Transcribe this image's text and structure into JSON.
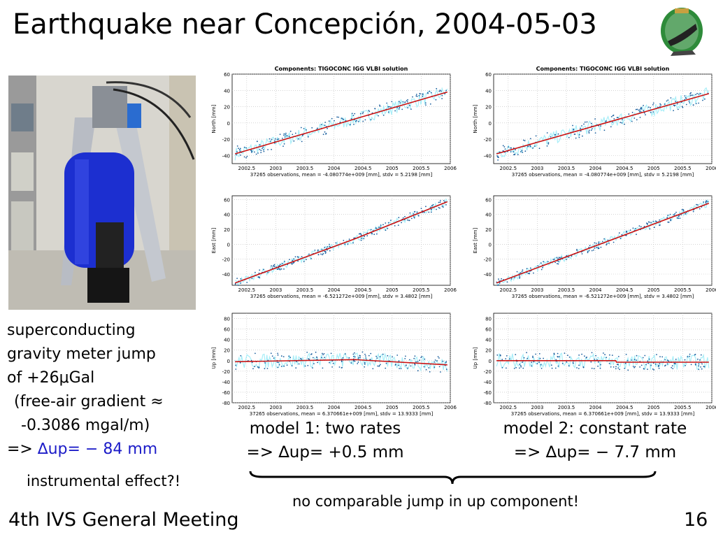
{
  "slide": {
    "title": "Earthquake near Concepción, 2004-05-03",
    "left_text": {
      "line1": "superconducting",
      "line2": "gravity meter jump",
      "line3": "of +26μGal",
      "line4": "(free-air gradient ≈",
      "line5": "-0.3086 mgal/m)",
      "line6_prefix": "=> ",
      "line6_value": "∆up= − 84 mm"
    },
    "instrumental": "instrumental effect?!",
    "model1": {
      "line1": "model 1: two rates",
      "line2": "=> ∆up=  +0.5 mm"
    },
    "model2": {
      "line1": "model 2: constant rate",
      "line2": "=> ∆up= − 7.7 mm"
    },
    "bottom_note": "no comparable jump in up component!",
    "footer": "4th IVS General Meeting",
    "page_number": "16"
  },
  "colors": {
    "fit_line": "#cc1111",
    "data_points": "#1a5f9e",
    "band": "#a8eef8",
    "accent_text": "#1c1cc8"
  },
  "chart_data": [
    {
      "type": "scatter",
      "title": "Components: TIGOCONC        IGG VLBI solution",
      "ylabel": "North [mm]",
      "footer": "37265 observations,  mean = -4.080774e+009 [mm],  stdv = 5.2198 [mm]",
      "xlim": [
        2002.25,
        2006.0
      ],
      "ylim": [
        -50,
        60
      ],
      "yticks": [
        -40,
        -20,
        0,
        20,
        40,
        60
      ],
      "xticks": [
        "2002.5",
        "2003",
        "2003.5",
        "2004",
        "2004.5",
        "2005",
        "2005.5",
        "2006"
      ],
      "fit": [
        [
          2002.3,
          -38
        ],
        [
          2005.95,
          38
        ]
      ],
      "noise": 8
    },
    {
      "type": "scatter",
      "title": "Components: TIGOCONC        IGG VLBI solution",
      "ylabel": "North [mm]",
      "footer": "37265 observations,  mean = -4.080774e+009 [mm],  stdv = 5.2198 [mm]",
      "xlim": [
        2002.25,
        2006.0
      ],
      "ylim": [
        -50,
        60
      ],
      "yticks": [
        -40,
        -20,
        0,
        20,
        40,
        60
      ],
      "xticks": [
        "2002.5",
        "2003",
        "2003.5",
        "2004",
        "2004.5",
        "2005",
        "2005.5",
        "2006"
      ],
      "fit": [
        [
          2002.3,
          -38
        ],
        [
          2005.95,
          36
        ]
      ],
      "noise": 8
    },
    {
      "type": "scatter",
      "title": "",
      "ylabel": "East [mm]",
      "footer": "37265 observations,  mean = -6.521272e+009 [mm],  stdv = 3.4802 [mm]",
      "xlim": [
        2002.25,
        2006.0
      ],
      "ylim": [
        -55,
        65
      ],
      "yticks": [
        -40,
        -20,
        0,
        20,
        40,
        60
      ],
      "xticks": [
        "2002.5",
        "2003",
        "2003.5",
        "2004",
        "2004.5",
        "2005",
        "2005.5",
        "2006"
      ],
      "fit": [
        [
          2002.3,
          -52
        ],
        [
          2004.35,
          7
        ],
        [
          2005.95,
          57
        ]
      ],
      "noise": 5
    },
    {
      "type": "scatter",
      "title": "",
      "ylabel": "East [mm]",
      "footer": "37265 observations,  mean = -6.521272e+009 [mm],  stdv = 3.4802 [mm]",
      "xlim": [
        2002.25,
        2006.0
      ],
      "ylim": [
        -55,
        65
      ],
      "yticks": [
        -40,
        -20,
        0,
        20,
        40,
        60
      ],
      "xticks": [
        "2002.5",
        "2003",
        "2003.5",
        "2004",
        "2004.5",
        "2005",
        "2005.5",
        "2006"
      ],
      "fit": [
        [
          2002.3,
          -52
        ],
        [
          2005.95,
          55
        ]
      ],
      "noise": 5
    },
    {
      "type": "scatter",
      "title": "",
      "ylabel": "Up [mm]",
      "footer": "37265 observations,  mean = 6.370661e+009 [mm],  stdv = 13.9333 [mm]",
      "xlim": [
        2002.25,
        2006.0
      ],
      "ylim": [
        -80,
        90
      ],
      "yticks": [
        -80,
        -60,
        -40,
        -20,
        0,
        20,
        40,
        60,
        80
      ],
      "xticks": [
        "2002.5",
        "2003",
        "2003.5",
        "2004",
        "2004.5",
        "2005",
        "2005.5",
        "2006"
      ],
      "fit": [
        [
          2002.3,
          -2
        ],
        [
          2004.35,
          2
        ],
        [
          2005.95,
          -8
        ]
      ],
      "noise": 14
    },
    {
      "type": "scatter",
      "title": "",
      "ylabel": "Up [mm]",
      "footer": "37265 observations,  mean = 6.370661e+009 [mm],  stdv = 13.9333 [mm]",
      "xlim": [
        2002.25,
        2006.0
      ],
      "ylim": [
        -80,
        90
      ],
      "yticks": [
        -80,
        -60,
        -40,
        -20,
        0,
        20,
        40,
        60,
        80
      ],
      "xticks": [
        "2002.5",
        "2003",
        "2003.5",
        "2004",
        "2004.5",
        "2005",
        "2005.5",
        "2006"
      ],
      "fit": [
        [
          2002.3,
          0
        ],
        [
          2004.35,
          0
        ],
        [
          2004.36,
          -3
        ],
        [
          2005.95,
          -3
        ]
      ],
      "noise": 14
    }
  ]
}
